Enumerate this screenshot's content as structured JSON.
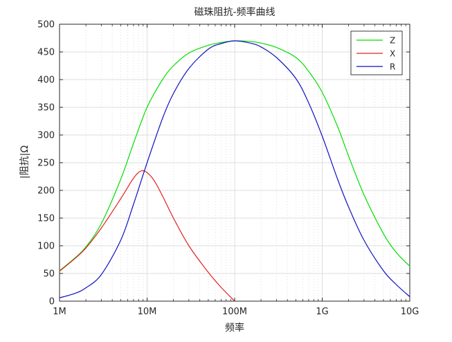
{
  "chart_data": {
    "type": "line",
    "title": "磁珠阻抗-频率曲线",
    "xlabel": "频率",
    "ylabel": "|阻抗|Ω",
    "xscale": "log",
    "xlim": [
      1000000,
      10000000000
    ],
    "ylim": [
      0,
      500
    ],
    "xticks": [
      1000000,
      10000000,
      100000000,
      1000000000,
      10000000000
    ],
    "xtick_labels": [
      "1M",
      "10M",
      "100M",
      "1G",
      "10G"
    ],
    "yticks": [
      0,
      50,
      100,
      150,
      200,
      250,
      300,
      350,
      400,
      450,
      500
    ],
    "grid": true,
    "legend_position": "top-right",
    "series": [
      {
        "name": "Z",
        "color": "#00dd00",
        "x": [
          1000000,
          1500000,
          2000000,
          3000000,
          5000000,
          7000000,
          10000000,
          15000000,
          20000000,
          30000000,
          50000000,
          70000000,
          100000000,
          150000000,
          200000000,
          300000000,
          500000000,
          700000000,
          1000000000,
          1500000000,
          2000000000,
          3000000000,
          5000000000,
          7000000000,
          10000000000
        ],
        "values": [
          55,
          78,
          98,
          140,
          220,
          285,
          350,
          400,
          425,
          448,
          462,
          467,
          470,
          469,
          466,
          458,
          440,
          415,
          377,
          315,
          262,
          192,
          122,
          88,
          63
        ]
      },
      {
        "name": "X",
        "color": "#e02020",
        "x": [
          1000000,
          1500000,
          2000000,
          3000000,
          5000000,
          7000000,
          8500000,
          10000000,
          12000000,
          15000000,
          20000000,
          30000000,
          50000000,
          70000000,
          100000000
        ],
        "values": [
          54,
          77,
          96,
          132,
          185,
          222,
          235,
          232,
          218,
          190,
          150,
          100,
          52,
          25,
          0
        ]
      },
      {
        "name": "R",
        "color": "#1010c0",
        "x": [
          1000000,
          1500000,
          2000000,
          3000000,
          5000000,
          7000000,
          10000000,
          15000000,
          20000000,
          30000000,
          50000000,
          70000000,
          100000000,
          150000000,
          200000000,
          300000000,
          500000000,
          700000000,
          1000000000,
          1500000000,
          2000000000,
          3000000000,
          5000000000,
          7000000000,
          10000000000
        ],
        "values": [
          6,
          14,
          24,
          48,
          110,
          175,
          250,
          330,
          375,
          420,
          455,
          465,
          470,
          466,
          459,
          440,
          402,
          358,
          298,
          220,
          170,
          110,
          55,
          30,
          8
        ]
      }
    ]
  }
}
